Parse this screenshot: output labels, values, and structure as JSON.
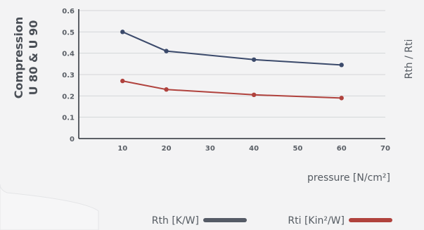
{
  "chart_data": {
    "type": "line",
    "ylabel_line1": "Compression",
    "ylabel_line2": "U 80 & U 90",
    "right_label": "Rth / Rti",
    "xlabel": "pressure [N/cm²]",
    "x_ticks": [
      "10",
      "20",
      "30",
      "40",
      "50",
      "60",
      "70"
    ],
    "y_ticks": [
      "0",
      "0.1",
      "0.2",
      "0.3",
      "0.4",
      "0.5",
      "0.6"
    ],
    "xlim": [
      0,
      70
    ],
    "ylim": [
      0,
      0.6
    ],
    "grid": true,
    "legend_placement": "bottom-right",
    "series": [
      {
        "name": "Rth [K/W]",
        "color": "#3b4a6b",
        "legend_color": "#555b66",
        "x": [
          10,
          20,
          40,
          60
        ],
        "y": [
          0.5,
          0.41,
          0.37,
          0.345
        ]
      },
      {
        "name": "Rti [Kin²/W]",
        "color": "#b0423d",
        "legend_color": "#b0423d",
        "x": [
          10,
          20,
          40,
          60
        ],
        "y": [
          0.27,
          0.23,
          0.205,
          0.19
        ]
      }
    ]
  }
}
